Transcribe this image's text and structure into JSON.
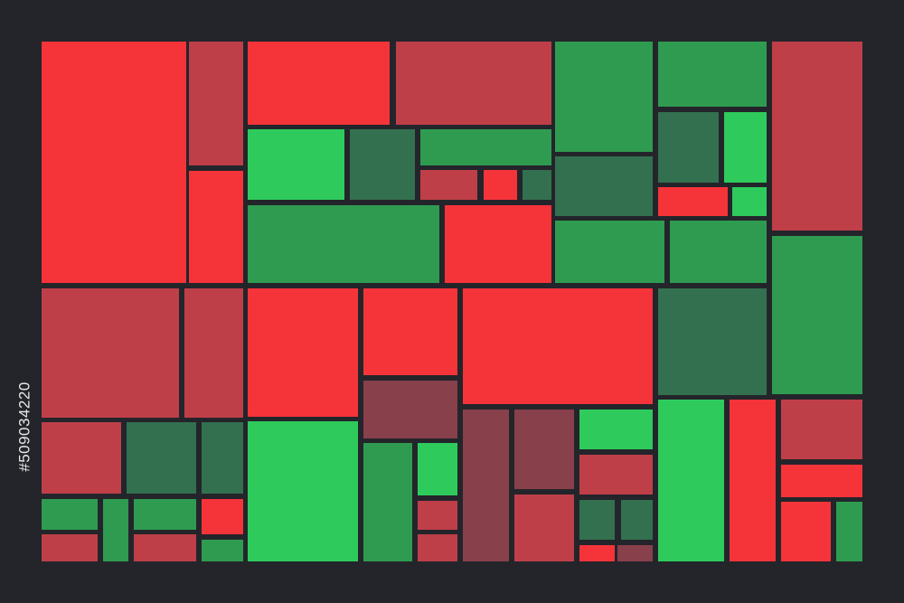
{
  "watermark_id": "#509034220"
}
